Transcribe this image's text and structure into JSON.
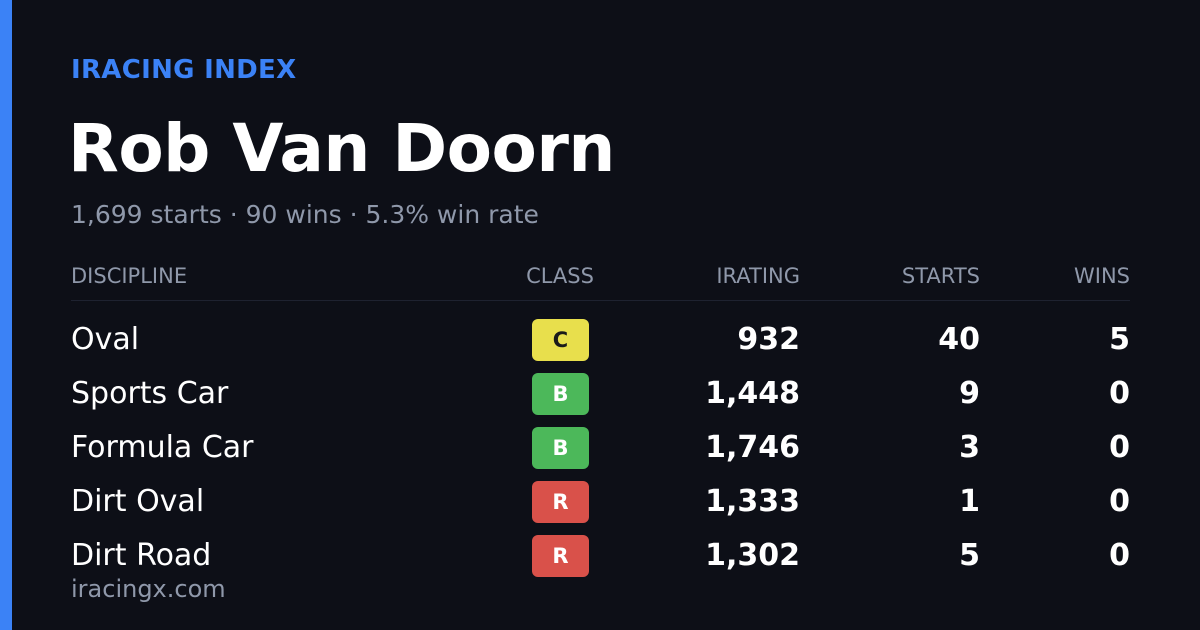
{
  "brand": "IRACING INDEX",
  "driver": {
    "name": "Rob Van Doorn",
    "summary": "1,699 starts · 90 wins · 5.3% win rate"
  },
  "table": {
    "headers": {
      "discipline": "DISCIPLINE",
      "class": "CLASS",
      "irating": "IRATING",
      "starts": "STARTS",
      "wins": "WINS"
    },
    "rows": [
      {
        "discipline": "Oval",
        "class": "C",
        "class_color": "#e8df4c",
        "class_text_color": "#1a1a1a",
        "irating": "932",
        "starts": "40",
        "wins": "5"
      },
      {
        "discipline": "Sports Car",
        "class": "B",
        "class_color": "#4cb85a",
        "class_text_color": "#ffffff",
        "irating": "1,448",
        "starts": "9",
        "wins": "0"
      },
      {
        "discipline": "Formula Car",
        "class": "B",
        "class_color": "#4cb85a",
        "class_text_color": "#ffffff",
        "irating": "1,746",
        "starts": "3",
        "wins": "0"
      },
      {
        "discipline": "Dirt Oval",
        "class": "R",
        "class_color": "#d9514a",
        "class_text_color": "#ffffff",
        "irating": "1,333",
        "starts": "1",
        "wins": "0"
      },
      {
        "discipline": "Dirt Road",
        "class": "R",
        "class_color": "#d9514a",
        "class_text_color": "#ffffff",
        "irating": "1,302",
        "starts": "5",
        "wins": "0"
      }
    ]
  },
  "footer": "iracingx.com",
  "colors": {
    "background": "#0d0f17",
    "accent": "#3b82f6",
    "muted_text": "#8f98aa"
  }
}
